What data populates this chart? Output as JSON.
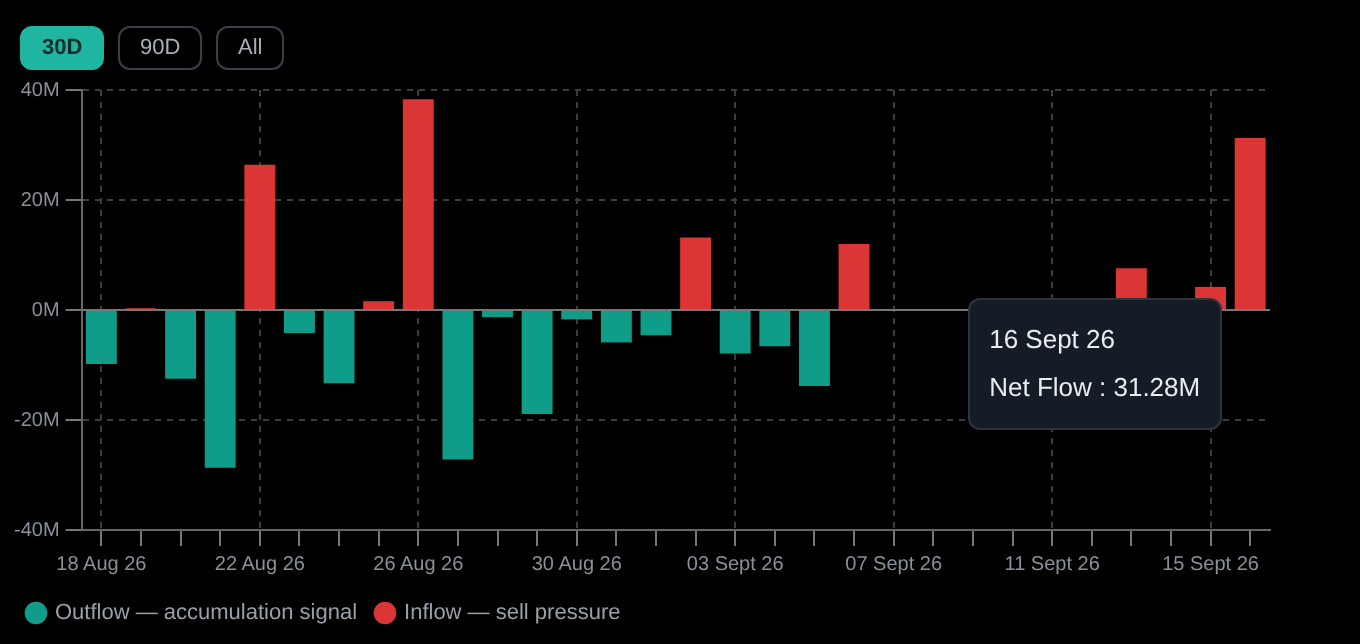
{
  "chart_data": {
    "type": "bar",
    "categories": [
      "18 Aug 26",
      null,
      null,
      null,
      "22 Aug 26",
      null,
      null,
      null,
      "26 Aug 26",
      null,
      null,
      null,
      "30 Aug 26",
      null,
      null,
      null,
      "03 Sept 26",
      null,
      null,
      null,
      "07 Sept 26",
      null,
      null,
      null,
      "11 Sept 26",
      null,
      null,
      null,
      "15 Sept 26",
      null
    ],
    "series": [
      {
        "name": "Outflow — accumulation signal",
        "color": "#0f9d8a",
        "values": [
          -9.8,
          null,
          -12.5,
          -28.7,
          null,
          -4.2,
          -13.3,
          null,
          null,
          -27.2,
          -1.3,
          -18.9,
          -1.7,
          -5.9,
          -4.6,
          null,
          -7.9,
          -6.6,
          -13.8,
          null,
          null,
          null,
          null,
          null,
          null,
          null,
          null,
          null,
          null,
          null
        ]
      },
      {
        "name": "Inflow — sell pressure",
        "color": "#dc3535",
        "values": [
          null,
          0.3,
          null,
          null,
          26.4,
          null,
          null,
          1.6,
          38.3,
          null,
          null,
          null,
          null,
          null,
          null,
          13.2,
          null,
          null,
          null,
          12.0,
          null,
          null,
          null,
          null,
          null,
          null,
          7.6,
          null,
          4.2,
          31.28
        ]
      }
    ],
    "ylim": [
      -40,
      40
    ],
    "yticks": [
      {
        "value": -40,
        "label": "-40M"
      },
      {
        "value": -20,
        "label": "-20M"
      },
      {
        "value": 0,
        "label": "0M"
      },
      {
        "value": 20,
        "label": "20M"
      },
      {
        "value": 40,
        "label": "40M"
      }
    ],
    "grid": true,
    "ref_lines": [
      {
        "axis": "y",
        "value": 0,
        "color": "#777777"
      }
    ],
    "legend": "bottom",
    "annotations": [
      "30D",
      "90D",
      "All",
      "16 Sept 26",
      "Net Flow : 31.28M"
    ]
  }
}
